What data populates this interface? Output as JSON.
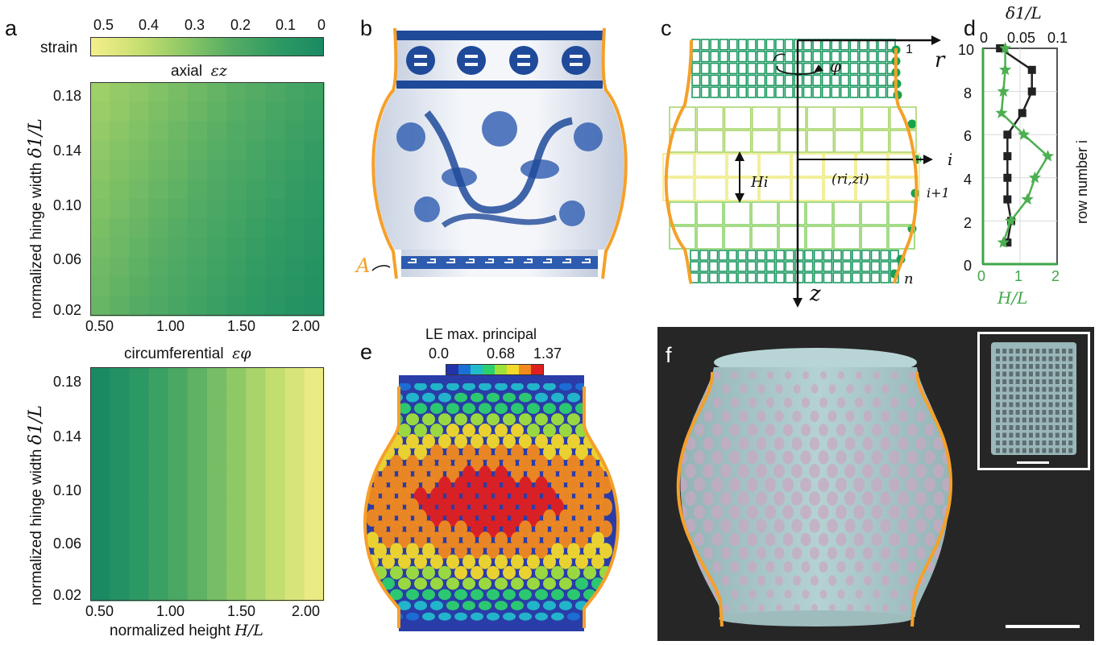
{
  "panels": {
    "a": "a",
    "b": "b",
    "c": "c",
    "d": "d",
    "e": "e",
    "f": "f"
  },
  "panel_a": {
    "colorbar_title": "strain",
    "colorbar_ticks": [
      "0.5",
      "0.4",
      "0.3",
      "0.2",
      "0.1",
      "0"
    ],
    "colormap": [
      "#f5ee8c",
      "#c9e071",
      "#8ec866",
      "#56ad64",
      "#2f9a63",
      "#1a8a63"
    ],
    "top_title_text": "axial",
    "top_title_math": "εz",
    "bottom_title_text": "circumferential",
    "bottom_title_math": "εφ",
    "ylabel_text": "normalized hinge width",
    "ylabel_math": "δ1/L",
    "xlabel_text": "normalized height",
    "xlabel_math": "H/L",
    "y_ticks": [
      "0.18",
      "0.14",
      "0.10",
      "0.06",
      "0.02"
    ],
    "x_ticks": [
      "0.50",
      "1.00",
      "1.50",
      "2.00"
    ]
  },
  "panel_b": {
    "curve_label": "A",
    "outline_color": "#f5a02a"
  },
  "panel_c": {
    "axis_r": "r",
    "axis_z": "z",
    "phi": "φ",
    "label_1": "1",
    "label_i": "i",
    "label_i1": "i+1",
    "label_n": "n",
    "label_Hi": "Hi",
    "label_coord": "(ri,zi)"
  },
  "chart_data": {
    "type": "line",
    "title": "",
    "top_xlabel": "δ1/L",
    "bottom_xlabel": "H/L",
    "ylabel": "row number i",
    "top_xticks": [
      "0",
      "0.05",
      "0.1"
    ],
    "bottom_xticks": [
      "0",
      "1",
      "2"
    ],
    "y_ticks": [
      "0",
      "2",
      "4",
      "6",
      "8",
      "10"
    ],
    "top_xlim": [
      0,
      0.1
    ],
    "bottom_xlim": [
      0,
      2
    ],
    "ylim": [
      0,
      10
    ],
    "rows": [
      1,
      2,
      3,
      4,
      5,
      6,
      7,
      8,
      9,
      10
    ],
    "series": [
      {
        "axis": "top",
        "color": "#222222",
        "marker": "square",
        "values": [
          0.033,
          0.038,
          0.033,
          0.033,
          0.033,
          0.033,
          0.053,
          0.066,
          0.066,
          0.023
        ]
      },
      {
        "axis": "bottom",
        "color": "#4caf50",
        "marker": "star",
        "values": [
          0.55,
          0.75,
          1.2,
          1.4,
          1.75,
          1.1,
          0.5,
          0.55,
          0.6,
          0.6
        ]
      }
    ]
  },
  "panel_e": {
    "colorbar_title": "LE max. principal",
    "colorbar_ticks": [
      "0.0",
      "0.68",
      "1.37"
    ],
    "colormap": [
      "#2233aa",
      "#1a70d6",
      "#22bbcc",
      "#2ccf6e",
      "#9fe03a",
      "#f2d92a",
      "#f28a1e",
      "#e02020"
    ]
  }
}
